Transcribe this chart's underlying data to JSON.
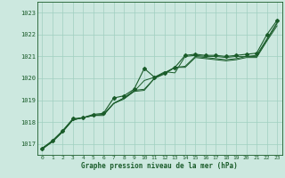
{
  "title": "Graphe pression niveau de la mer (hPa)",
  "bg_color": "#cce8df",
  "grid_color": "#a0cfc0",
  "line_color": "#1a5c2a",
  "xlim": [
    -0.5,
    23.5
  ],
  "ylim": [
    1016.5,
    1023.5
  ],
  "yticks": [
    1017,
    1018,
    1019,
    1020,
    1021,
    1022,
    1023
  ],
  "xticks": [
    0,
    1,
    2,
    3,
    4,
    5,
    6,
    7,
    8,
    9,
    10,
    11,
    12,
    13,
    14,
    15,
    16,
    17,
    18,
    19,
    20,
    21,
    22,
    23
  ],
  "series1": [
    1016.75,
    1017.1,
    1017.55,
    1018.1,
    1018.2,
    1018.3,
    1018.35,
    1018.85,
    1019.05,
    1019.4,
    1019.45,
    1020.0,
    1020.2,
    1020.5,
    1020.5,
    1020.95,
    1020.9,
    1020.85,
    1020.8,
    1020.85,
    1020.95,
    1020.95,
    1021.7,
    1022.4
  ],
  "series2": [
    1016.8,
    1017.1,
    1017.55,
    1018.1,
    1018.2,
    1018.3,
    1018.35,
    1018.85,
    1019.1,
    1019.45,
    1019.5,
    1020.0,
    1020.25,
    1020.5,
    1020.55,
    1021.0,
    1020.95,
    1020.9,
    1020.85,
    1020.9,
    1021.0,
    1021.0,
    1021.75,
    1022.5
  ],
  "series3": [
    1016.8,
    1017.1,
    1017.6,
    1018.1,
    1018.2,
    1018.3,
    1018.3,
    1018.85,
    1019.1,
    1019.4,
    1019.9,
    1020.05,
    1020.3,
    1020.25,
    1021.0,
    1021.05,
    1021.0,
    1021.0,
    1020.95,
    1021.0,
    1021.0,
    1021.05,
    1021.8,
    1022.55
  ],
  "series_marked": [
    1016.8,
    1017.15,
    1017.6,
    1018.15,
    1018.2,
    1018.35,
    1018.4,
    1019.1,
    1019.2,
    1019.5,
    1020.45,
    1020.05,
    1020.25,
    1020.5,
    1021.05,
    1021.1,
    1021.05,
    1021.05,
    1021.0,
    1021.05,
    1021.1,
    1021.15,
    1022.0,
    1022.65
  ]
}
